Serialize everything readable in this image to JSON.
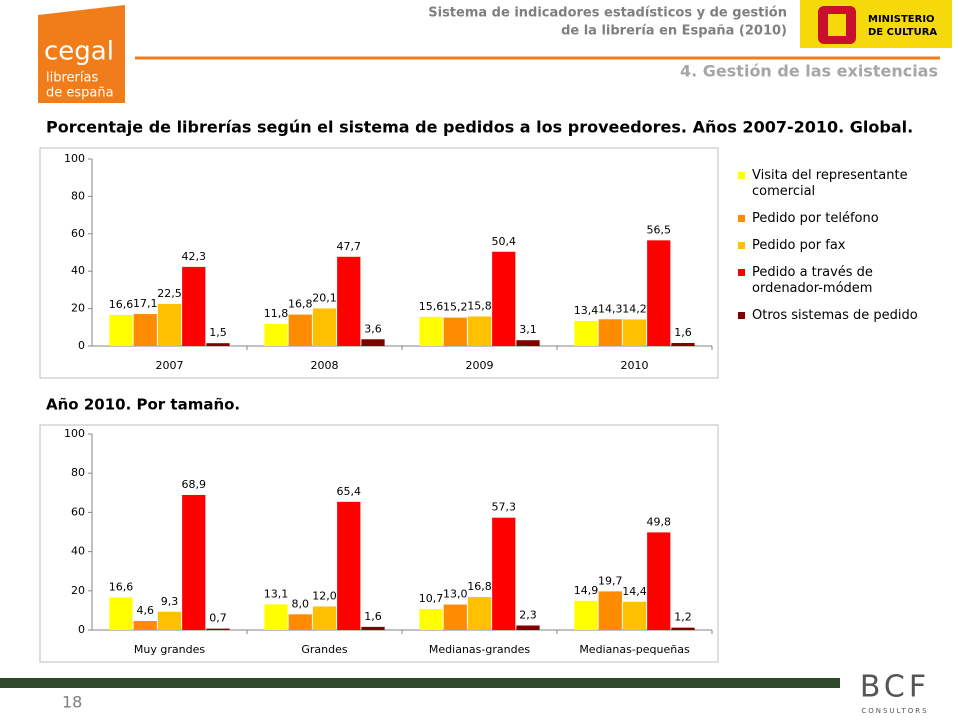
{
  "header": {
    "line1": "Sistema de indicadores estadísticos y de gestión",
    "line2": "de la librería en España (2010)",
    "section": "4. Gestión de las existencias",
    "logo_name": "cegal",
    "logo_line1": "librerías",
    "logo_line2": "de españa",
    "ministry_line1": "MINISTERIO",
    "ministry_line2": "DE CULTURA"
  },
  "title": "Porcentaje de librerías según el sistema de pedidos a los proveedores. Años 2007-2010. Global.",
  "subtitle": "Año 2010. Por tamaño.",
  "chart_data": [
    {
      "type": "bar",
      "categories": [
        "2007",
        "2008",
        "2009",
        "2010"
      ],
      "ylim": [
        0,
        100
      ],
      "yticks": [
        0,
        20,
        40,
        60,
        80,
        100
      ],
      "grid": false,
      "legend": "right",
      "series": [
        {
          "name": "Visita del representante comercial",
          "color": "#ffff00",
          "values": [
            16.6,
            11.8,
            15.6,
            13.4
          ],
          "value_labels": [
            "16,6",
            "11,8",
            "15,6",
            "13,4"
          ]
        },
        {
          "name": "Pedido por teléfono",
          "color": "#ff8c00",
          "values": [
            17.1,
            16.8,
            15.2,
            14.3
          ],
          "value_labels": [
            "17,1",
            "16,8",
            "15,2",
            "14,3"
          ]
        },
        {
          "name": "Pedido por fax",
          "color": "#ffc000",
          "values": [
            22.5,
            20.1,
            15.8,
            14.2
          ],
          "value_labels": [
            "22,5",
            "20,1",
            "15,8",
            "14,2"
          ]
        },
        {
          "name": "Pedido a través de ordenador-módem",
          "color": "#ff0000",
          "values": [
            42.3,
            47.7,
            50.4,
            56.5
          ],
          "value_labels": [
            "42,3",
            "47,7",
            "50,4",
            "56,5"
          ]
        },
        {
          "name": "Otros sistemas de pedido",
          "color": "#800000",
          "values": [
            1.5,
            3.6,
            3.1,
            1.6
          ],
          "value_labels": [
            "1,5",
            "3,6",
            "3,1",
            "1,6"
          ]
        }
      ]
    },
    {
      "type": "bar",
      "categories": [
        "Muy grandes",
        "Grandes",
        "Medianas-grandes",
        "Medianas-pequeñas"
      ],
      "ylim": [
        0,
        100
      ],
      "yticks": [
        0,
        20,
        40,
        60,
        80,
        100
      ],
      "grid": false,
      "series": [
        {
          "color": "#ffff00",
          "values": [
            16.6,
            13.1,
            10.7,
            14.9
          ],
          "value_labels": [
            "16,6",
            "13,1",
            "10,7",
            "14,9"
          ]
        },
        {
          "color": "#ff8c00",
          "values": [
            4.6,
            8.0,
            13.0,
            19.7
          ],
          "value_labels": [
            "4,6",
            "8,0",
            "13,0",
            "19,7"
          ]
        },
        {
          "color": "#ffc000",
          "values": [
            9.3,
            12.0,
            16.8,
            14.4
          ],
          "value_labels": [
            "9,3",
            "12,0",
            "16,8",
            "14,4"
          ]
        },
        {
          "color": "#ff0000",
          "values": [
            68.9,
            65.4,
            57.3,
            49.8
          ],
          "value_labels": [
            "68,9",
            "65,4",
            "57,3",
            "49,8"
          ]
        },
        {
          "color": "#800000",
          "values": [
            0.7,
            1.6,
            2.3,
            1.2
          ],
          "value_labels": [
            "0,7",
            "1,6",
            "2,3",
            "1,2"
          ]
        }
      ]
    }
  ],
  "footer": {
    "page": "18",
    "brand": "BCF",
    "brand_sub": "CONSULTORS"
  }
}
